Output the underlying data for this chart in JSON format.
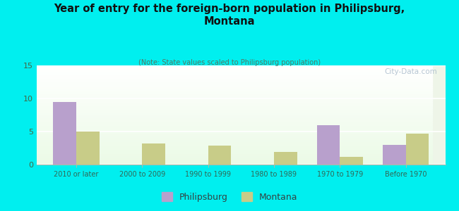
{
  "title": "Year of entry for the foreign-born population in Philipsburg,\nMontana",
  "subtitle": "(Note: State values scaled to Philipsburg population)",
  "categories": [
    "2010 or later",
    "2000 to 2009",
    "1990 to 1999",
    "1980 to 1989",
    "1970 to 1979",
    "Before 1970"
  ],
  "philipsburg_values": [
    9.5,
    0,
    0,
    0,
    6.0,
    3.0
  ],
  "montana_values": [
    5.0,
    3.2,
    2.9,
    1.9,
    1.2,
    4.7
  ],
  "philipsburg_color": "#b8a0cc",
  "montana_color": "#c8cc88",
  "background_color": "#00EFEF",
  "ylim": [
    0,
    15
  ],
  "yticks": [
    0,
    5,
    10,
    15
  ],
  "bar_width": 0.35,
  "watermark": "City-Data.com",
  "legend_labels": [
    "Philipsburg",
    "Montana"
  ]
}
